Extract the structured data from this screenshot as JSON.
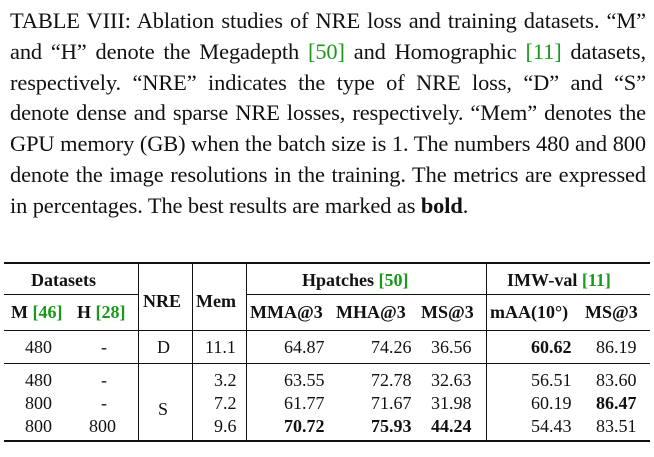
{
  "caption": {
    "prefix": "TABLE VIII: Ablation studies of NRE loss and training datasets. “M” and “H” denote the Megadepth ",
    "ref_megadepth": "[50]",
    "mid1": " and Homographic ",
    "ref_homographic": "[11]",
    "mid2": " datasets, respectively. “NRE” indicates the type of NRE loss, “D” and “S” denote dense and sparse NRE losses, respectively. “Mem” denotes the GPU memory (GB) when the batch size is 1. The numbers 480 and 800 denote the image resolutions in the training. The metrics are expressed in percentages. The best results are marked as ",
    "bold_word": "bold",
    "suffix": "."
  },
  "table": {
    "group_datasets": "Datasets",
    "col_m": "M",
    "col_m_ref": "[46]",
    "col_h": "H",
    "col_h_ref": "[28]",
    "col_nre": "NRE",
    "col_mem": "Mem",
    "group_hpatches": "Hpatches",
    "group_hpatches_ref": "[50]",
    "group_imw": "IMW-val",
    "group_imw_ref": "[11]",
    "col_mma": "MMA@3",
    "col_mha": "MHA@3",
    "col_ms_h": "MS@3",
    "col_maa": "mAA(10°)",
    "col_ms_i": "MS@3",
    "nre_dense": "D",
    "nre_sparse": "S",
    "rows": [
      {
        "m": "480",
        "h": "-",
        "mem": "11.1",
        "mma": "64.87",
        "mha": "74.26",
        "ms_h": "36.56",
        "maa": "60.62",
        "ms_i": "86.19"
      },
      {
        "m": "480",
        "h": "-",
        "mem": "3.2",
        "mma": "63.55",
        "mha": "72.78",
        "ms_h": "32.63",
        "maa": "56.51",
        "ms_i": "83.60"
      },
      {
        "m": "800",
        "h": "-",
        "mem": "7.2",
        "mma": "61.77",
        "mha": "71.67",
        "ms_h": "31.98",
        "maa": "60.19",
        "ms_i": "86.47"
      },
      {
        "m": "800",
        "h": "800",
        "mem": "9.6",
        "mma": "70.72",
        "mha": "75.93",
        "ms_h": "44.24",
        "maa": "54.43",
        "ms_i": "83.51"
      }
    ]
  }
}
